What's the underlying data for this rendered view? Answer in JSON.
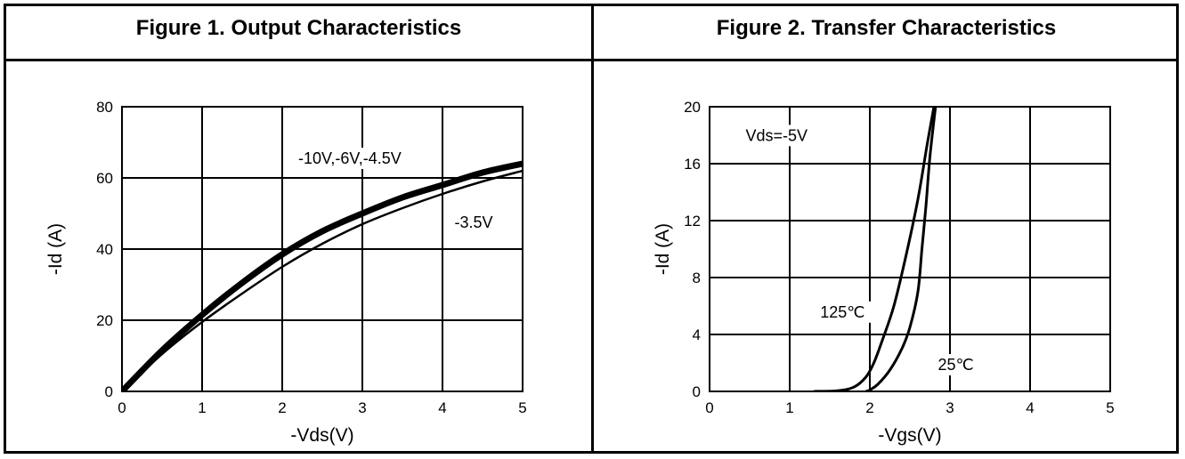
{
  "chart_data": [
    {
      "type": "line",
      "title": "Figure 1. Output Characteristics",
      "xlabel": "-Vds(V)",
      "ylabel": "-Id (A)",
      "xlim": [
        0,
        5
      ],
      "ylim": [
        0,
        80
      ],
      "xticks": [
        "0",
        "1",
        "2",
        "3",
        "4",
        "5"
      ],
      "yticks": [
        "0",
        "20",
        "40",
        "60",
        "80"
      ],
      "grid": true,
      "series": [
        {
          "name": "-10V,-6V,-4.5V",
          "x": [
            0,
            0.5,
            1,
            1.5,
            2,
            2.5,
            3,
            3.5,
            4,
            4.5,
            5
          ],
          "y": [
            0,
            11.5,
            21.5,
            30.5,
            38.5,
            45,
            50,
            54.5,
            58,
            61.5,
            64
          ]
        },
        {
          "name": "-3.5V",
          "x": [
            0,
            0.5,
            1,
            1.5,
            2,
            2.5,
            3,
            3.5,
            4,
            4.5,
            5
          ],
          "y": [
            0,
            10.5,
            19.5,
            27.5,
            35,
            41.5,
            47,
            51.5,
            55.5,
            59,
            62
          ]
        }
      ],
      "annotations": [
        "-10V,-6V,-4.5V",
        "-3.5V"
      ]
    },
    {
      "type": "line",
      "title": "Figure 2. Transfer Characteristics",
      "xlabel": "-Vgs(V)",
      "ylabel": "-Id (A)",
      "xlim": [
        0,
        5
      ],
      "ylim": [
        0,
        20
      ],
      "xticks": [
        "0",
        "1",
        "2",
        "3",
        "4",
        "5"
      ],
      "yticks": [
        "0",
        "4",
        "8",
        "12",
        "16",
        "20"
      ],
      "grid": true,
      "series": [
        {
          "name": "125℃",
          "x": [
            1.3,
            1.6,
            1.8,
            1.95,
            2.05,
            2.15,
            2.3,
            2.45,
            2.6,
            2.72,
            2.8
          ],
          "y": [
            0,
            0.05,
            0.3,
            1,
            2,
            3.5,
            6,
            9.5,
            13.5,
            17.5,
            20
          ]
        },
        {
          "name": "25℃",
          "x": [
            1.95,
            2.0,
            2.1,
            2.25,
            2.4,
            2.5,
            2.6,
            2.65,
            2.7,
            2.75,
            2.82
          ],
          "y": [
            0,
            0.1,
            0.5,
            1.5,
            3,
            4.5,
            7,
            10,
            13,
            16.5,
            20
          ]
        }
      ],
      "annotations": [
        "Vds=-5V",
        "125℃",
        "25℃"
      ]
    }
  ]
}
